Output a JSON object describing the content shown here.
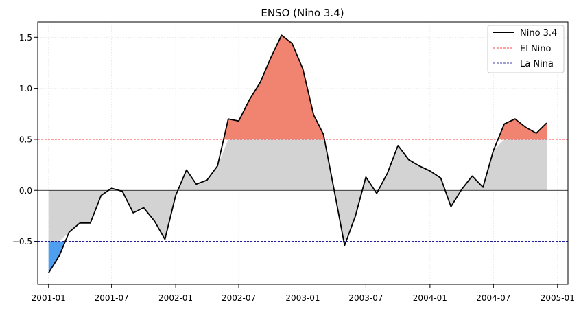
{
  "chart_data": {
    "type": "line",
    "title": "ENSO (Nino 3.4)",
    "xlabel": "",
    "ylabel": "",
    "xlim": [
      "2000-12-01",
      "2005-01-31"
    ],
    "ylim": [
      -0.92,
      1.65
    ],
    "x_ticks": [
      "2001-01",
      "2001-07",
      "2002-01",
      "2002-07",
      "2003-01",
      "2003-07",
      "2004-01",
      "2004-07",
      "2005-01"
    ],
    "y_ticks": [
      -0.5,
      0.0,
      0.5,
      1.0,
      1.5
    ],
    "y_tick_labels": [
      "−0.5",
      "0.0",
      "0.5",
      "1.0",
      "1.5"
    ],
    "grid": true,
    "legend_position": "top-right",
    "thresholds": [
      {
        "name": "El Nino",
        "value": 0.5,
        "color": "#ff0000",
        "style": "dashed"
      },
      {
        "name": "La Nina",
        "value": -0.5,
        "color": "#00008b",
        "style": "dashed"
      }
    ],
    "colors": {
      "line": "#000000",
      "el_nino_fill": "#f08470",
      "la_nina_fill": "#4f9ff0",
      "neutral_fill": "#d3d3d3",
      "zero_line": "#000000"
    },
    "series": [
      {
        "name": "Nino 3.4",
        "x": [
          "2001-01",
          "2001-02",
          "2001-03",
          "2001-04",
          "2001-05",
          "2001-06",
          "2001-07",
          "2001-08",
          "2001-09",
          "2001-10",
          "2001-11",
          "2001-12",
          "2002-01",
          "2002-02",
          "2002-03",
          "2002-04",
          "2002-05",
          "2002-06",
          "2002-07",
          "2002-08",
          "2002-09",
          "2002-10",
          "2002-11",
          "2002-12",
          "2003-01",
          "2003-02",
          "2003-03",
          "2003-04",
          "2003-05",
          "2003-06",
          "2003-07",
          "2003-08",
          "2003-09",
          "2003-10",
          "2003-11",
          "2003-12",
          "2004-01",
          "2004-02",
          "2004-03",
          "2004-04",
          "2004-05",
          "2004-06",
          "2004-07",
          "2004-08",
          "2004-09",
          "2004-10",
          "2004-11",
          "2004-12"
        ],
        "values": [
          -0.81,
          -0.64,
          -0.41,
          -0.32,
          -0.32,
          -0.05,
          0.02,
          -0.01,
          -0.22,
          -0.17,
          -0.3,
          -0.48,
          -0.05,
          0.2,
          0.06,
          0.1,
          0.24,
          0.7,
          0.68,
          0.89,
          1.06,
          1.3,
          1.52,
          1.44,
          1.19,
          0.74,
          0.55,
          0.0,
          -0.54,
          -0.25,
          0.13,
          -0.03,
          0.17,
          0.44,
          0.3,
          0.24,
          0.19,
          0.12,
          -0.16,
          0.01,
          0.14,
          0.03,
          0.39,
          0.65,
          0.7,
          0.62,
          0.56,
          0.66
        ]
      }
    ]
  }
}
